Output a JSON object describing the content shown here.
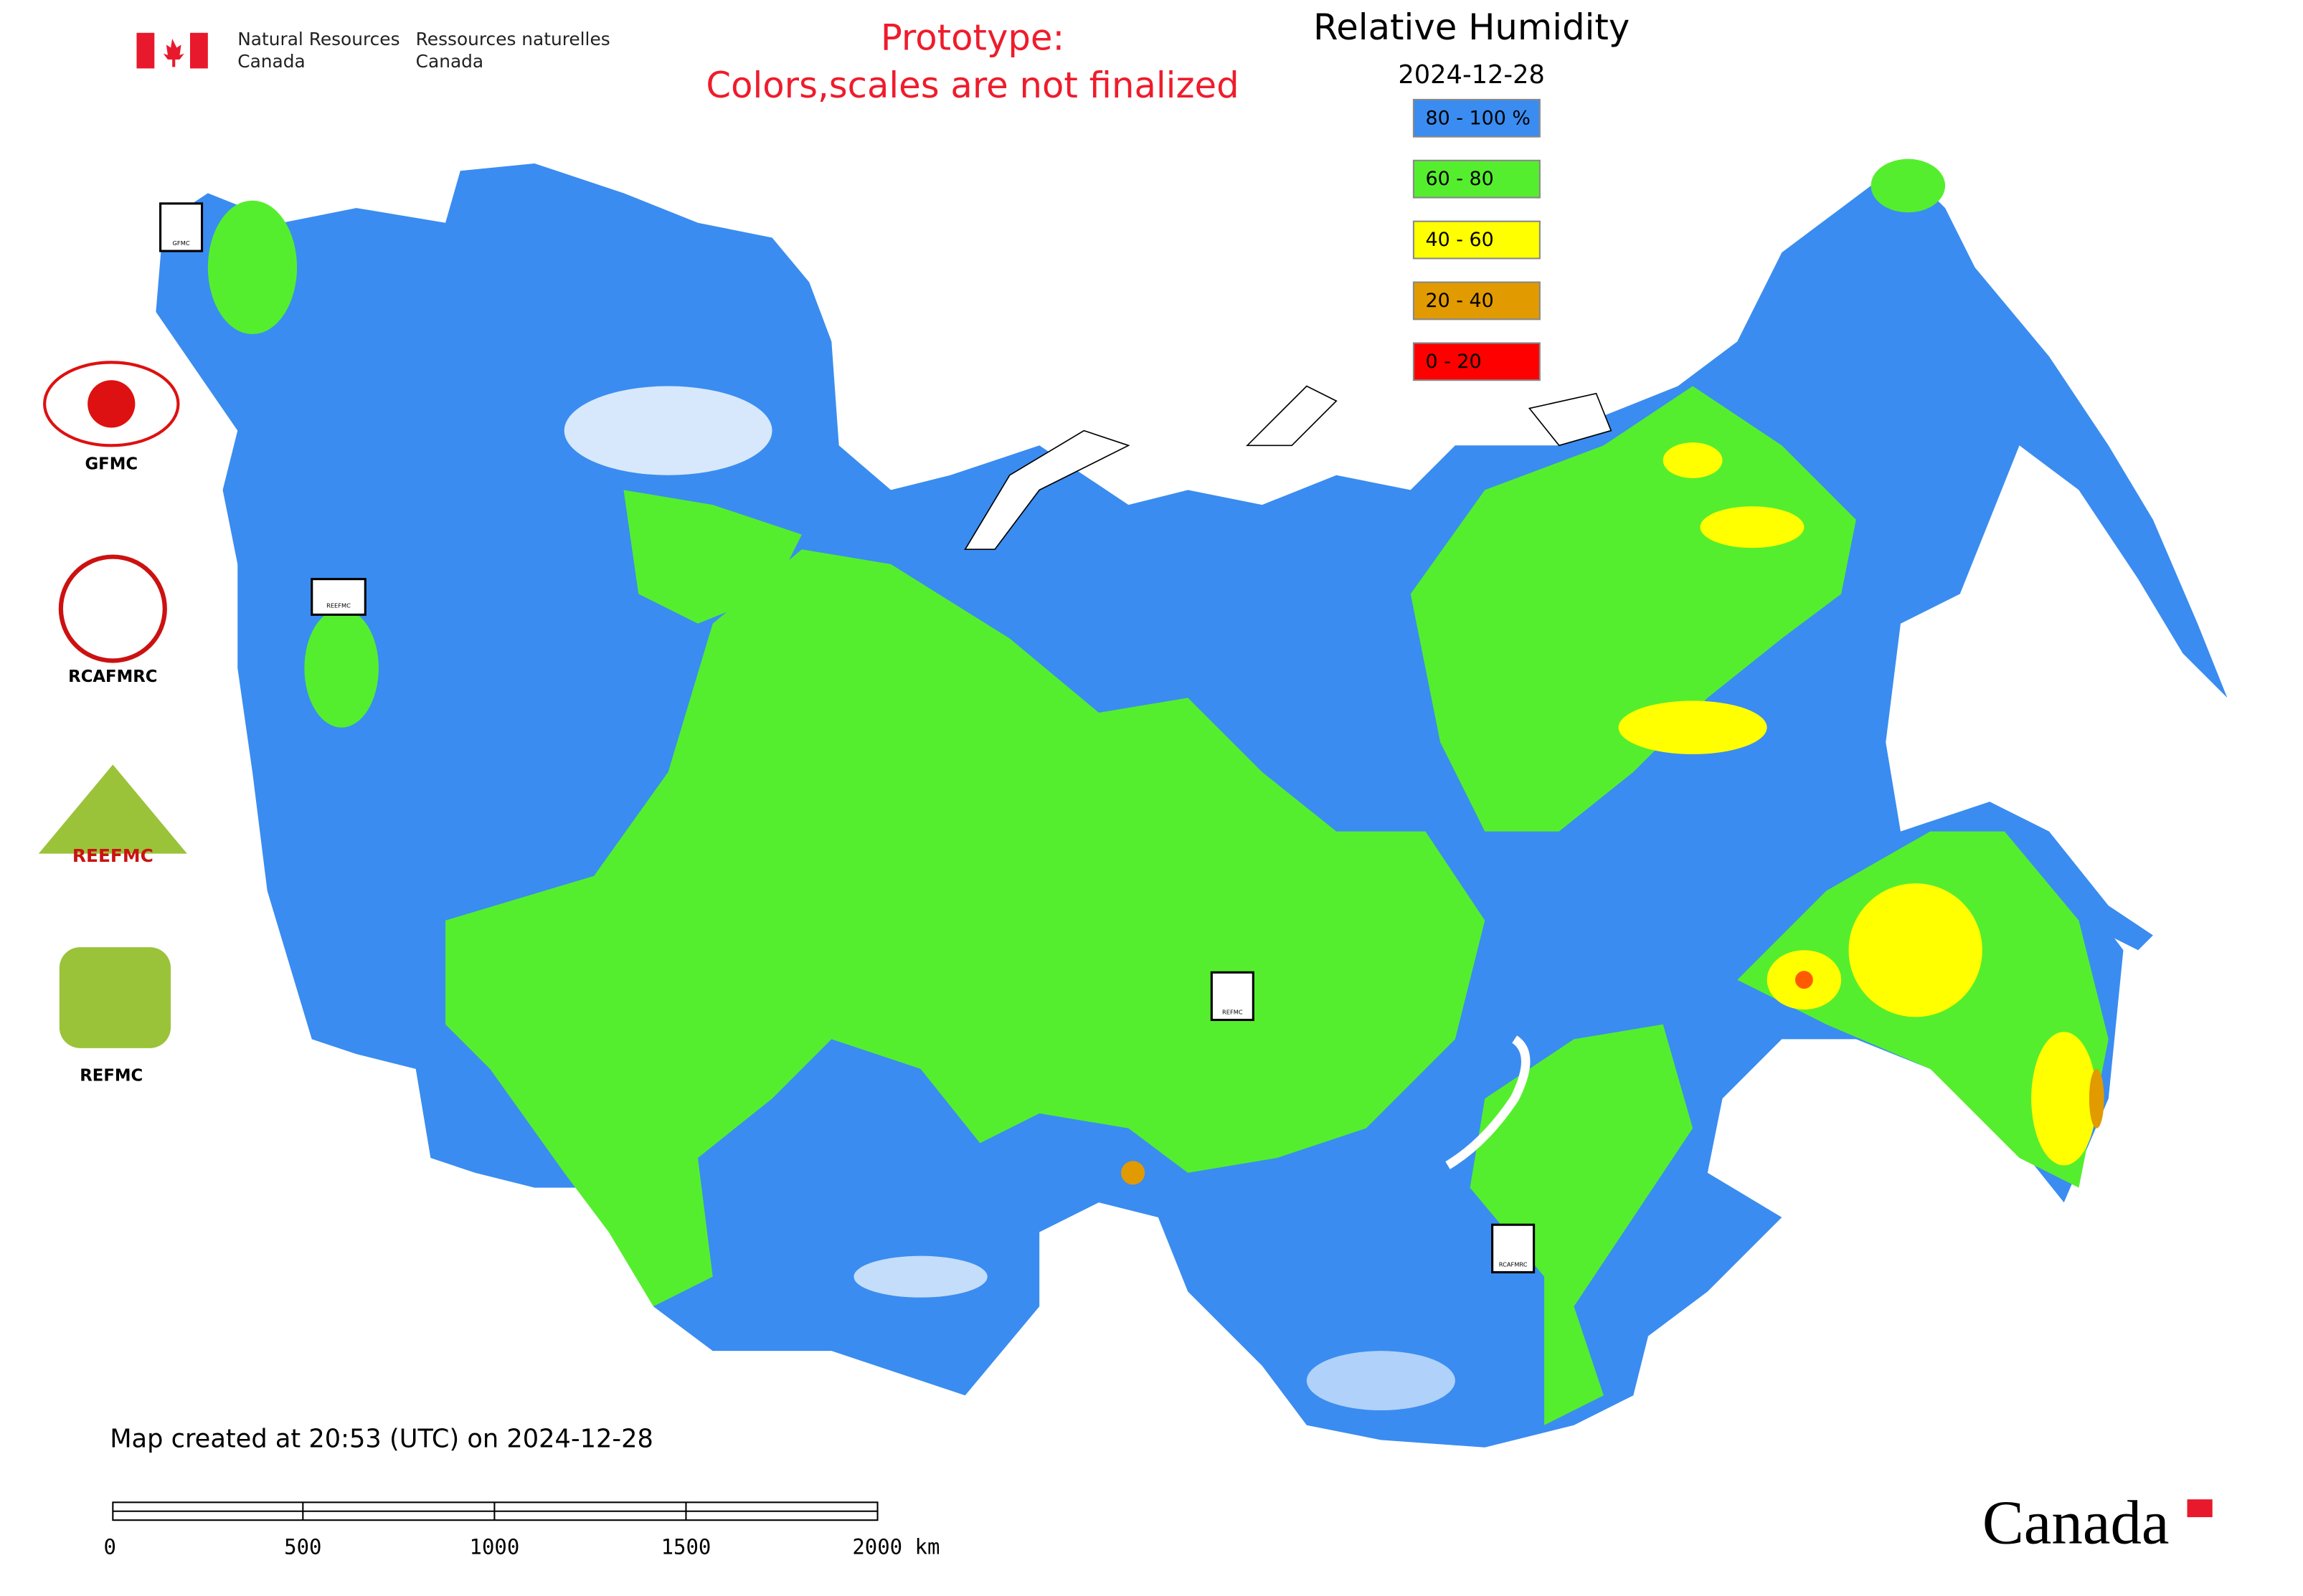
{
  "header": {
    "agency_en": [
      "Natural Resources",
      "Canada"
    ],
    "agency_fr": [
      "Ressources naturelles",
      "Canada"
    ]
  },
  "notice": [
    "Prototype:",
    "Colors,scales are not finalized"
  ],
  "map": {
    "title": "Relative Humidity",
    "date": "2024-12-28",
    "legend": [
      {
        "label": "80 - 100 %",
        "color": "#3a8cf0"
      },
      {
        "label": "60 - 80",
        "color": "#55ee2e"
      },
      {
        "label": "40 - 60",
        "color": "#ffff00"
      },
      {
        "label": "20 - 40",
        "color": "#e19a00"
      },
      {
        "label": "0 - 20",
        "color": "#ff0000"
      }
    ],
    "logos": [
      "GFMC",
      "RCAFMRC",
      "REEFMC",
      "REFMC"
    ],
    "markers": [
      "GFMC",
      "REEFMC",
      "REFMC",
      "RCAFMRC"
    ],
    "footer": "Map created at 20:53 (UTC) on 2024-12-28",
    "scale_bar": [
      "0",
      "500",
      "1000",
      "1500",
      "2000 km"
    ]
  },
  "wordmark": "Canada"
}
